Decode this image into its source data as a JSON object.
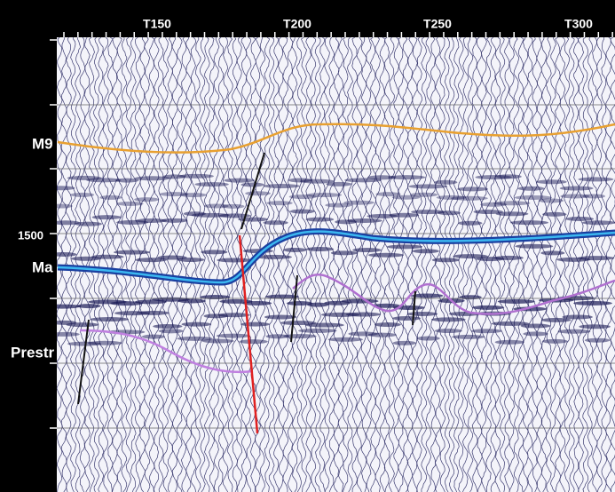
{
  "trace_labels": [
    "T150",
    "T200",
    "T250",
    "T300"
  ],
  "depth_label": "1500",
  "horizons": [
    {
      "label": "M9"
    },
    {
      "label": "Ma"
    },
    {
      "label": "Prestr"
    }
  ]
}
